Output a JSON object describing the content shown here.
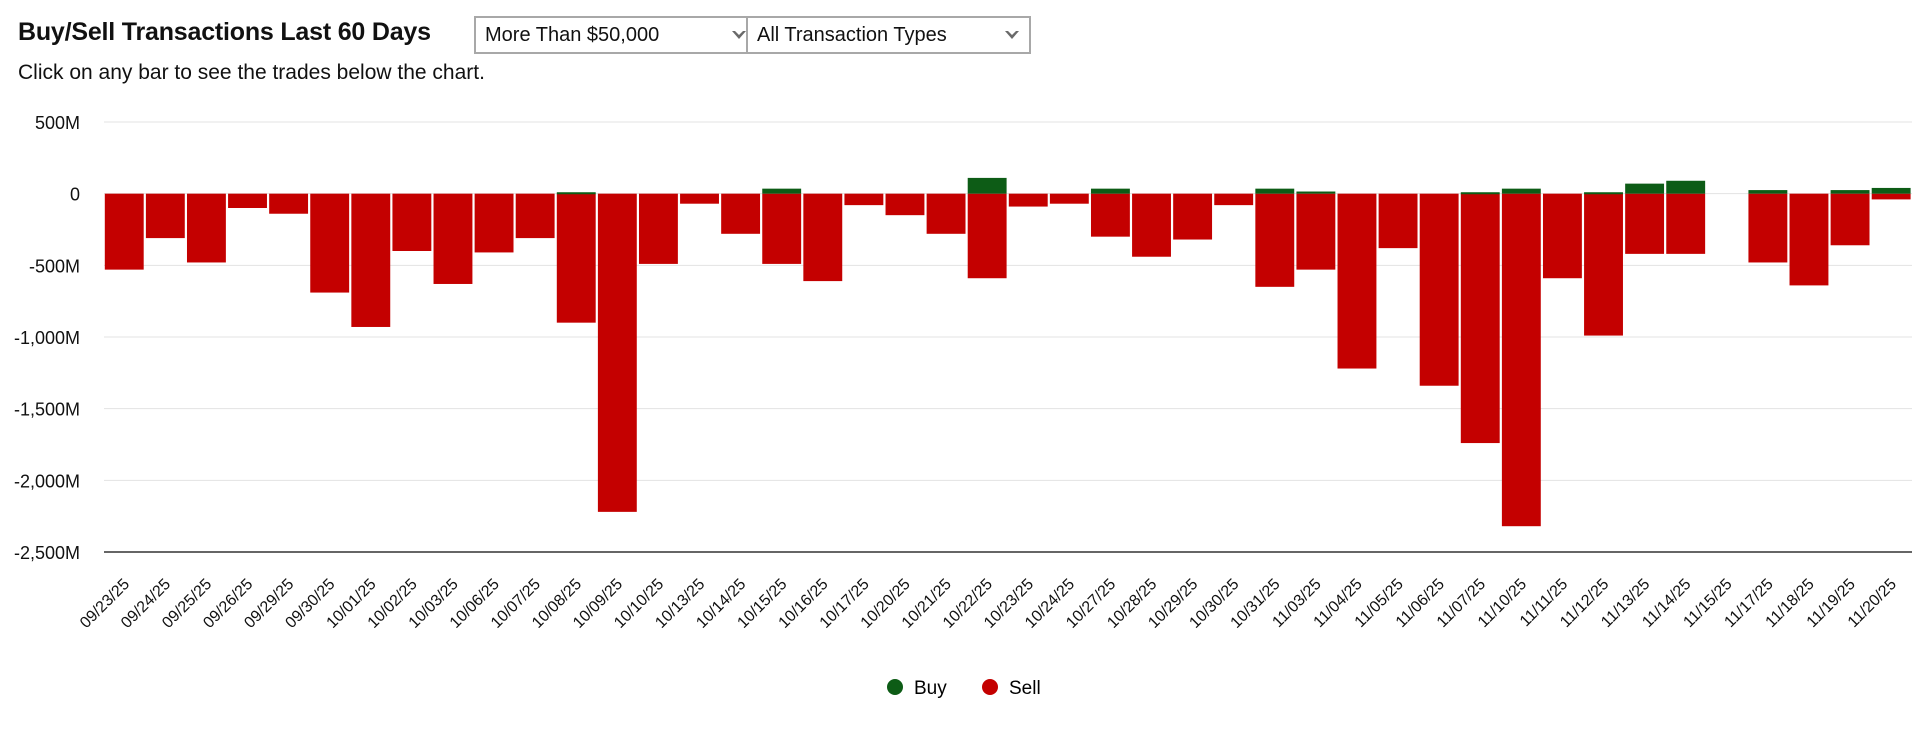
{
  "header": {
    "title": "Buy/Sell Transactions Last 60 Days",
    "subtitle": "Click on any bar to see the trades below the chart."
  },
  "filters": {
    "amount": {
      "selected": "More Than $50,000",
      "icon": "chevron-down-icon"
    },
    "type": {
      "selected": "All Transaction Types",
      "icon": "chevron-down-icon"
    }
  },
  "colors": {
    "buy": "#0d5c16",
    "sell": "#c40000",
    "grid": "#e3e3e3",
    "axis": "#333333"
  },
  "chart_data": {
    "type": "bar",
    "stacked": true,
    "title": "Buy/Sell Transactions Last 60 Days",
    "xlabel": "",
    "ylabel": "",
    "ylim": [
      -2500,
      500
    ],
    "yticks": [
      500,
      0,
      -500,
      -1000,
      -1500,
      -2000,
      -2500
    ],
    "ytick_labels": [
      "500M",
      "0",
      "-500M",
      "-1,000M",
      "-1,500M",
      "-2,000M",
      "-2,500M"
    ],
    "grid": true,
    "legend_position": "bottom-center",
    "categories": [
      "09/23/25",
      "09/24/25",
      "09/25/25",
      "09/26/25",
      "09/29/25",
      "09/30/25",
      "10/01/25",
      "10/02/25",
      "10/03/25",
      "10/06/25",
      "10/07/25",
      "10/08/25",
      "10/09/25",
      "10/10/25",
      "10/13/25",
      "10/14/25",
      "10/15/25",
      "10/16/25",
      "10/17/25",
      "10/20/25",
      "10/21/25",
      "10/22/25",
      "10/23/25",
      "10/24/25",
      "10/27/25",
      "10/28/25",
      "10/29/25",
      "10/30/25",
      "10/31/25",
      "11/03/25",
      "11/04/25",
      "11/05/25",
      "11/06/25",
      "11/07/25",
      "11/10/25",
      "11/11/25",
      "11/12/25",
      "11/13/25",
      "11/14/25",
      "11/15/25",
      "11/17/25",
      "11/18/25",
      "11/19/25",
      "11/20/25"
    ],
    "series": [
      {
        "name": "Buy",
        "color": "#0d5c16",
        "values": [
          0,
          0,
          0,
          0,
          0,
          0,
          0,
          0,
          0,
          0,
          0,
          10,
          0,
          0,
          0,
          0,
          35,
          0,
          0,
          0,
          0,
          110,
          0,
          0,
          35,
          0,
          0,
          0,
          35,
          15,
          0,
          0,
          0,
          10,
          35,
          0,
          10,
          70,
          90,
          0,
          25,
          0,
          25,
          40
        ]
      },
      {
        "name": "Sell",
        "color": "#c40000",
        "values": [
          -530,
          -310,
          -480,
          -100,
          -140,
          -690,
          -930,
          -400,
          -630,
          -410,
          -310,
          -900,
          -2220,
          -490,
          -70,
          -280,
          -490,
          -610,
          -80,
          -150,
          -280,
          -590,
          -90,
          -70,
          -300,
          -440,
          -320,
          -80,
          -650,
          -530,
          -1220,
          -380,
          -1340,
          -1740,
          -2320,
          -590,
          -990,
          -420,
          -420,
          0,
          -480,
          -640,
          -360,
          -40
        ]
      }
    ]
  }
}
